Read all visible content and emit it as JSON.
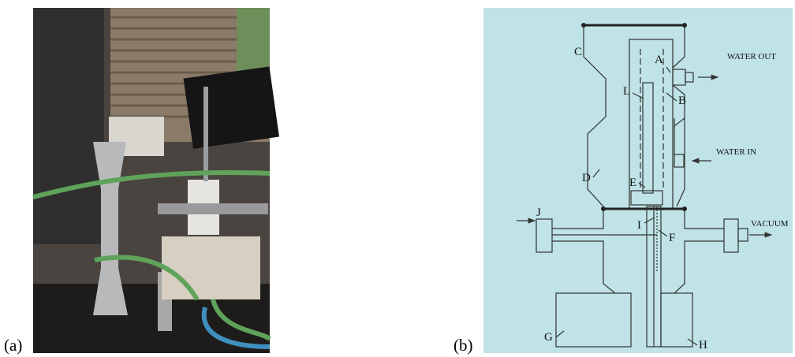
{
  "figure": {
    "panel_a": {
      "label": "(a)"
    },
    "panel_b": {
      "label": "(b)",
      "letters": [
        "A",
        "B",
        "C",
        "D",
        "E",
        "F",
        "G",
        "H",
        "I",
        "J",
        "L"
      ],
      "annotations": {
        "water_out": "WATER OUT",
        "water_in": "WATER IN",
        "vacuum": "VACUUM"
      }
    }
  }
}
